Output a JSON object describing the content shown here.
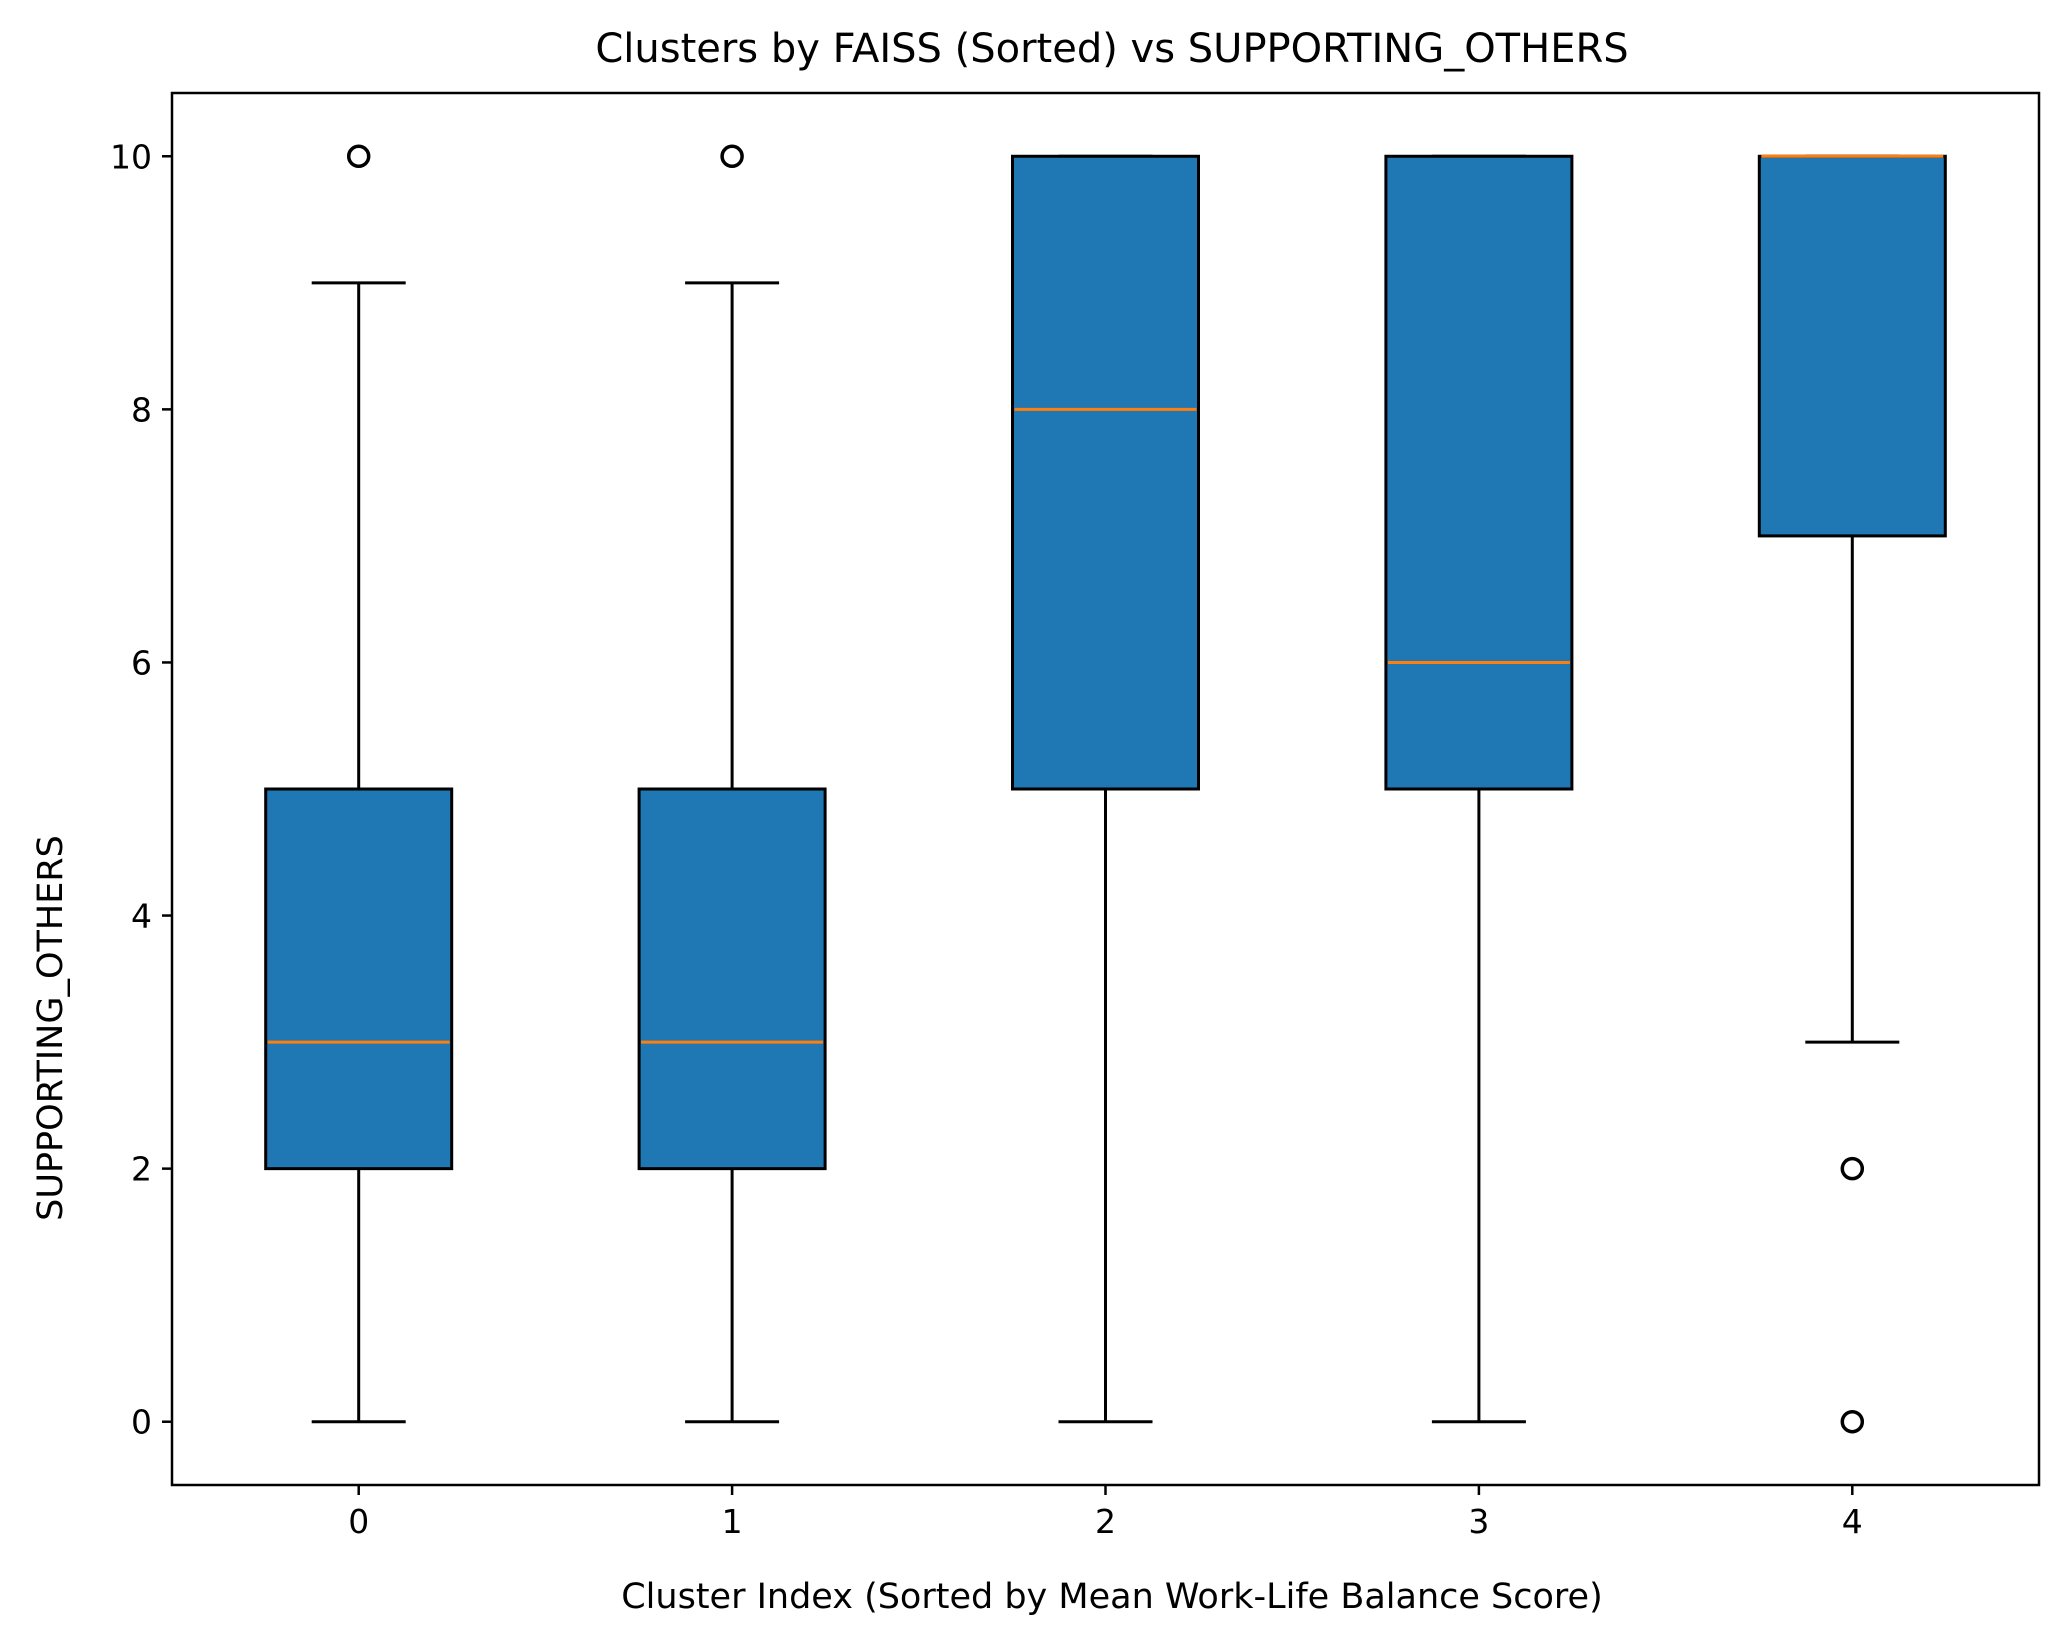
{
  "chart_data": {
    "type": "boxplot",
    "title": "Clusters by FAISS (Sorted) vs SUPPORTING_OTHERS",
    "xlabel": "Cluster Index (Sorted by Mean Work-Life Balance Score)",
    "ylabel": "SUPPORTING_OTHERS",
    "categories": [
      "0",
      "1",
      "2",
      "3",
      "4"
    ],
    "x_tick_labels": [
      "0",
      "1",
      "2",
      "3",
      "4"
    ],
    "y_ticks": [
      0,
      2,
      4,
      6,
      8,
      10
    ],
    "y_tick_labels": [
      "0",
      "2",
      "4",
      "6",
      "8",
      "10"
    ],
    "xlim": [
      -0.5,
      4.5
    ],
    "ylim": [
      -0.5,
      10.5
    ],
    "grid": false,
    "boxes": [
      {
        "category": "0",
        "whisker_low": 0,
        "q1": 2,
        "median": 3,
        "q3": 5,
        "whisker_high": 9,
        "outliers": [
          10
        ]
      },
      {
        "category": "1",
        "whisker_low": 0,
        "q1": 2,
        "median": 3,
        "q3": 5,
        "whisker_high": 9,
        "outliers": [
          10
        ]
      },
      {
        "category": "2",
        "whisker_low": 0,
        "q1": 5,
        "median": 8,
        "q3": 10,
        "whisker_high": 10,
        "outliers": []
      },
      {
        "category": "3",
        "whisker_low": 0,
        "q1": 5,
        "median": 6,
        "q3": 10,
        "whisker_high": 10,
        "outliers": []
      },
      {
        "category": "4",
        "whisker_low": 3,
        "q1": 7,
        "median": 10,
        "q3": 10,
        "whisker_high": 10,
        "outliers": [
          2,
          0
        ]
      }
    ],
    "colors": {
      "box_fill": "#1f77b4",
      "median": "#ff7f0e",
      "line": "#000000",
      "background": "#ffffff"
    }
  }
}
